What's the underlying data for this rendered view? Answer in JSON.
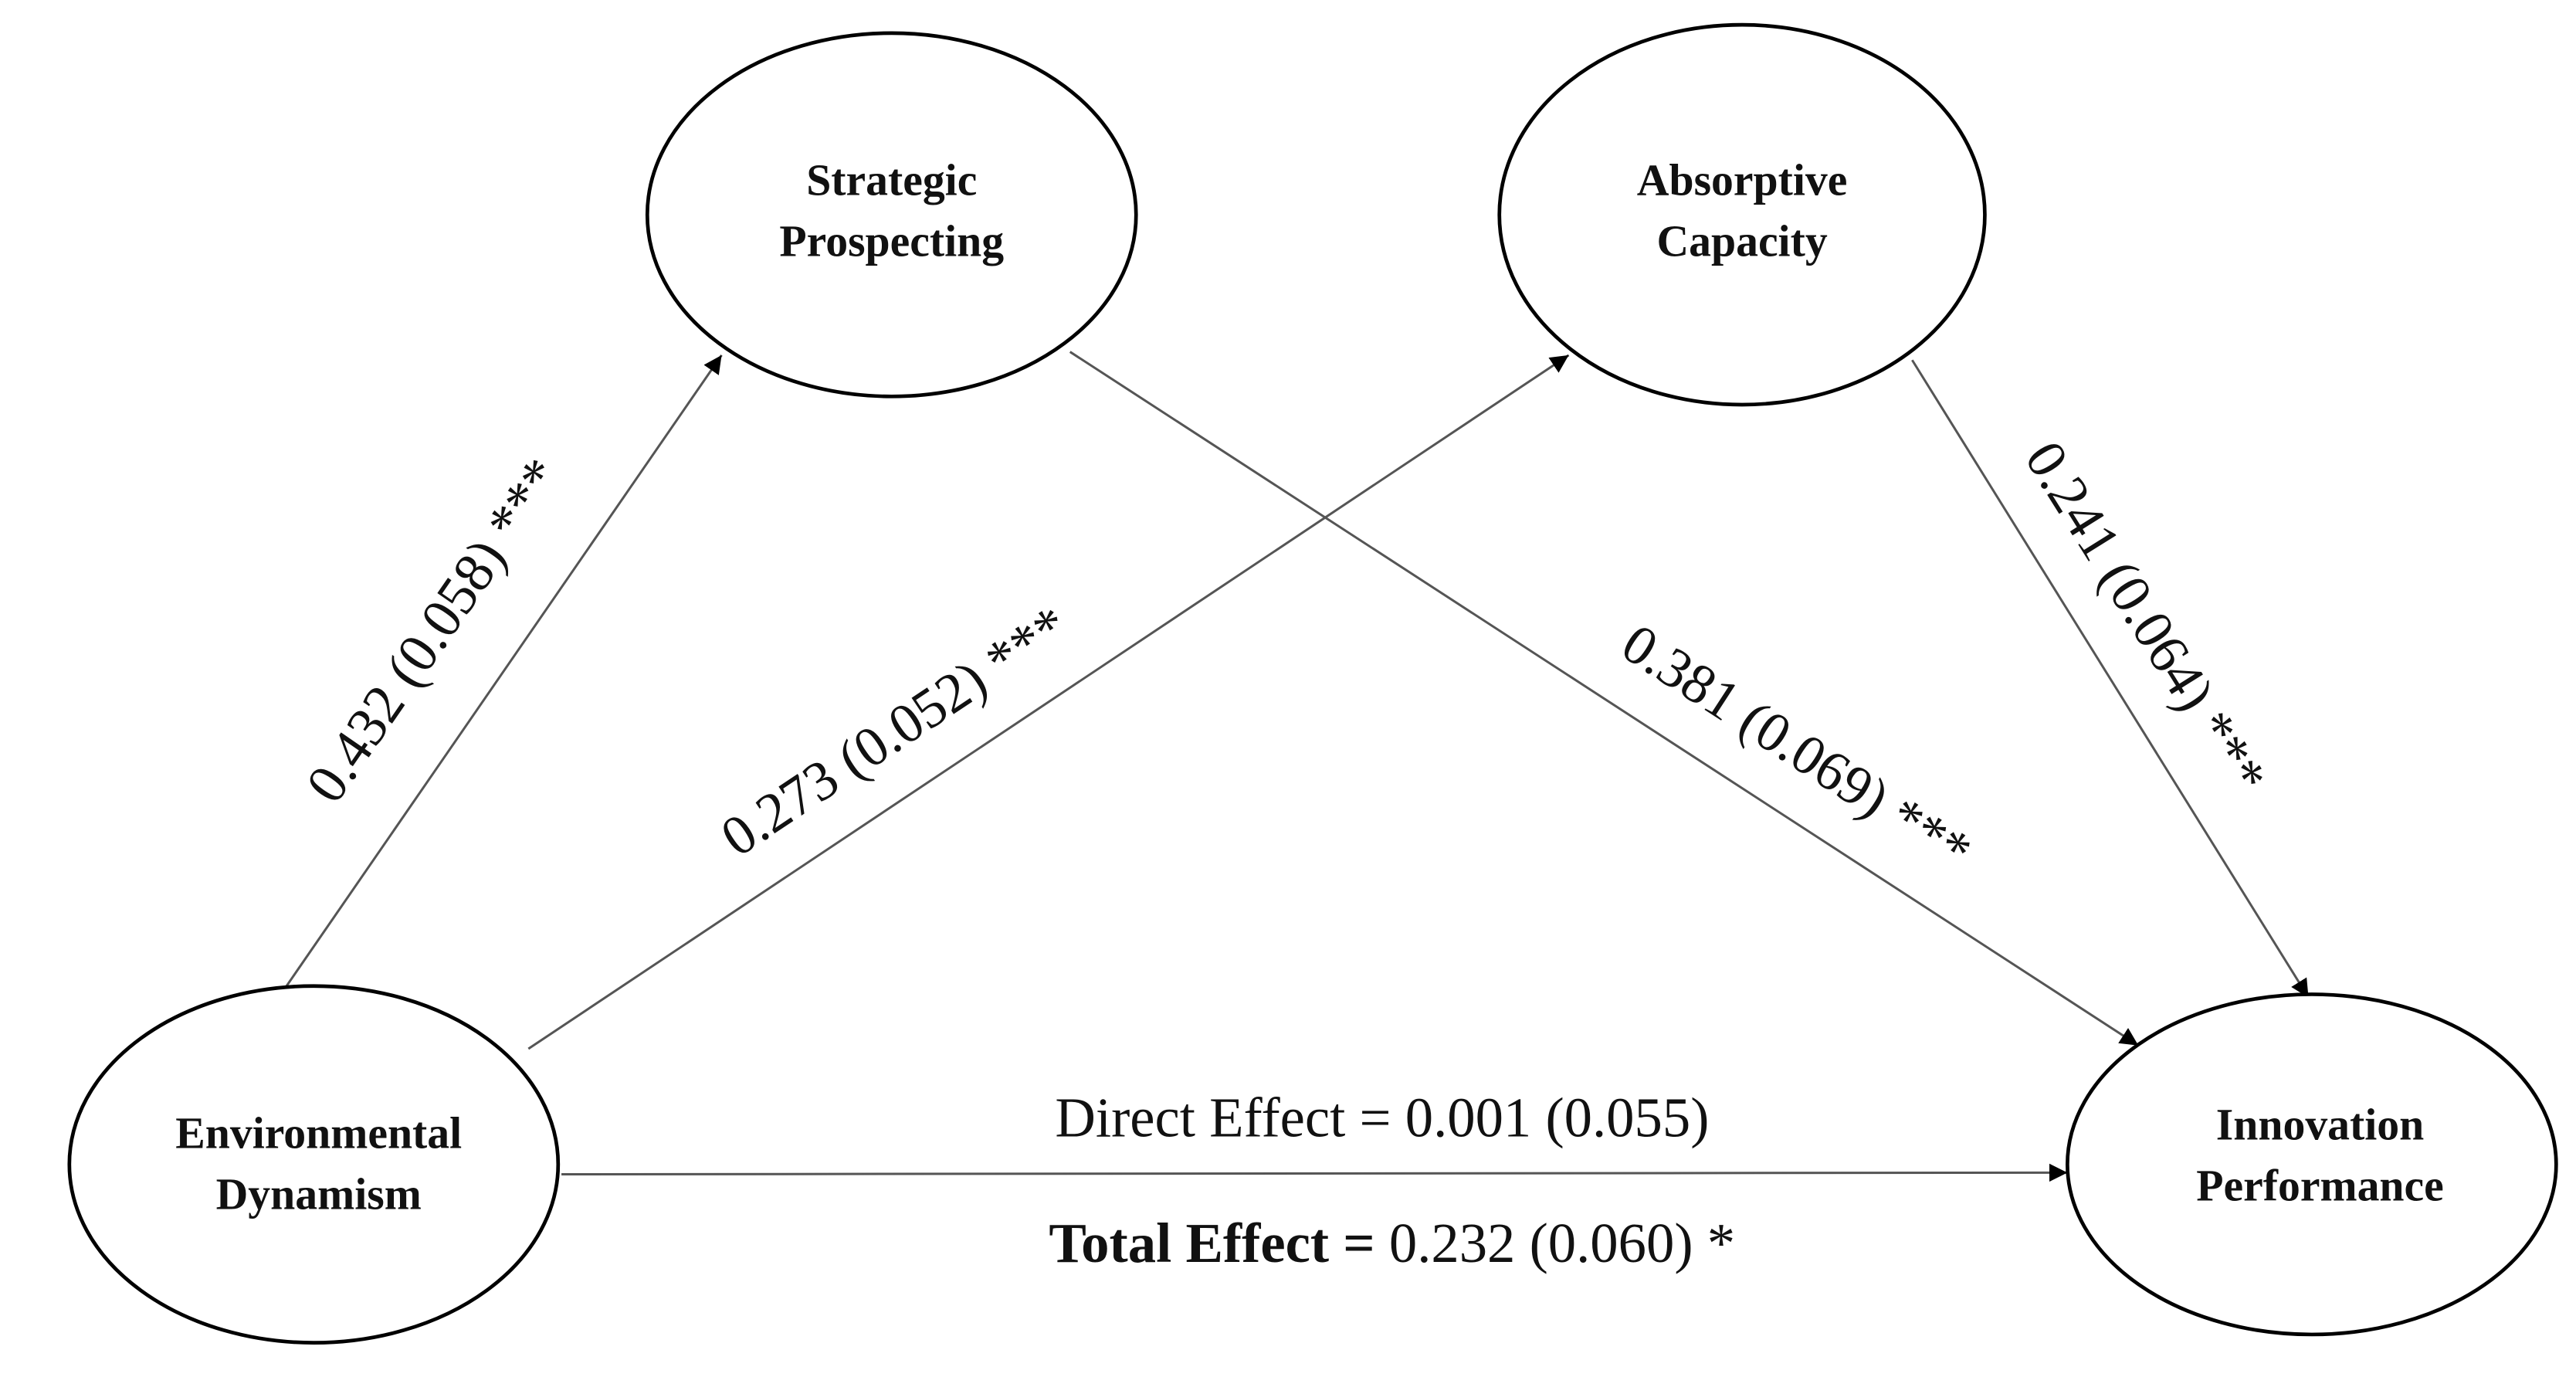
{
  "nodes": [
    {
      "lines": [
        "Strategic",
        "Prospecting"
      ]
    },
    {
      "lines": [
        "Absorptive",
        "Capacity"
      ]
    },
    {
      "lines": [
        "Environmental",
        "Dynamism"
      ]
    },
    {
      "lines": [
        "Innovation",
        "Performance"
      ]
    }
  ],
  "edges": [
    {
      "label": "0.432 (0.058) ***"
    },
    {
      "label": "0.273 (0.052) ***"
    },
    {
      "label": "0.381 (0.069) ***"
    },
    {
      "label": "0.241 (0.064) ***"
    }
  ],
  "direct_effect": {
    "label": "Direct Effect =",
    "value": "0.001 (0.055)"
  },
  "total_effect": {
    "label": "Total Effect =",
    "value": "0.232 (0.060) *"
  }
}
